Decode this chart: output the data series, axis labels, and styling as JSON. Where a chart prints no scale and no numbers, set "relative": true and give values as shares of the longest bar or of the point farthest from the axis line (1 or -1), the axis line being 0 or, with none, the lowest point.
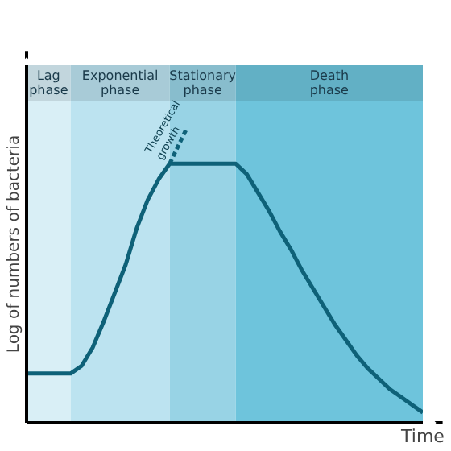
{
  "chart_data": {
    "type": "line",
    "relative": true,
    "xlabel": "Time",
    "ylabel": "Log of numbers of bacteria",
    "line_style": "solid",
    "categories": [
      null,
      null,
      null,
      null,
      null,
      null,
      null,
      null,
      null,
      null,
      null,
      null,
      null,
      null,
      null,
      null,
      null,
      null,
      null,
      null,
      null,
      null,
      null,
      null,
      null,
      null,
      null,
      null,
      null,
      null,
      null,
      null,
      null,
      null,
      null,
      null,
      null
    ],
    "series": [
      {
        "color": "#0e6178",
        "values": [
          0.19,
          0.19,
          0.19,
          0.19,
          0.19,
          0.22,
          0.29,
          0.39,
          0.5,
          0.61,
          0.75,
          0.86,
          0.94,
          1,
          1,
          1,
          1,
          1,
          1,
          1,
          0.96,
          0.89,
          0.82,
          0.74,
          0.67,
          0.59,
          0.52,
          0.45,
          0.38,
          0.32,
          0.26,
          0.21,
          0.17,
          0.13,
          0.1,
          0.07,
          0.04
        ]
      }
    ],
    "annotations": [
      "Lag phase",
      "Exponential phase",
      "Stationary phase",
      "Death phase",
      "Theoretical growth"
    ]
  }
}
